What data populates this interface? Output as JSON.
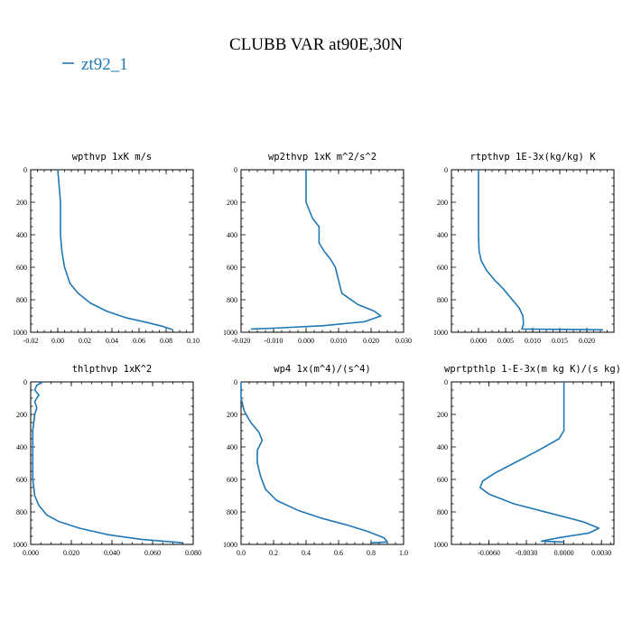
{
  "figure": {
    "title": "CLUBB VAR at90E,30N",
    "legend_label": "zt92_1",
    "line_color": "#1f77b4"
  },
  "chart_data": [
    {
      "type": "line",
      "title": "wpthvp  1xK m/s",
      "xlim": [
        -0.02,
        0.1
      ],
      "ylim": [
        1000,
        0
      ],
      "xticks": [
        "-0.02",
        "0.00",
        "0.02",
        "0.04",
        "0.06",
        "0.08",
        "0.10"
      ],
      "yticks": [
        "0",
        "200",
        "400",
        "600",
        "800",
        "1000"
      ],
      "grid": false,
      "series": [
        {
          "x": [
            0.0,
            0.001,
            0.002,
            0.002,
            0.002,
            0.003,
            0.005,
            0.009,
            0.015,
            0.024,
            0.036,
            0.05,
            0.066,
            0.078,
            0.085
          ],
          "y": [
            0,
            100,
            200,
            300,
            400,
            500,
            600,
            700,
            760,
            820,
            870,
            910,
            940,
            965,
            985
          ]
        }
      ]
    },
    {
      "type": "line",
      "title": "wp2thvp  1xK m^2/s^2",
      "xlim": [
        -0.02,
        0.03
      ],
      "ylim": [
        1000,
        0
      ],
      "xticks": [
        "-0.020",
        "-0.010",
        "0.000",
        "0.010",
        "0.020",
        "0.030"
      ],
      "yticks": [
        "0",
        "200",
        "400",
        "600",
        "800",
        "1000"
      ],
      "grid": false,
      "series": [
        {
          "x": [
            0.0,
            0.0,
            0.001,
            0.002,
            0.004,
            0.004,
            0.0055,
            0.0075,
            0.009,
            0.01,
            0.011,
            0.016,
            0.021,
            0.023,
            0.018,
            0.005,
            -0.01,
            -0.017
          ],
          "y": [
            0,
            200,
            250,
            300,
            350,
            450,
            500,
            550,
            600,
            680,
            760,
            830,
            870,
            900,
            935,
            960,
            975,
            980
          ]
        }
      ]
    },
    {
      "type": "line",
      "title": "rtpthvp  1E-3x(kg/kg) K",
      "xlim": [
        -0.005,
        0.025
      ],
      "ylim": [
        1000,
        0
      ],
      "xticks": [
        "0.000",
        "0.005",
        "0.010",
        "0.015",
        "0.020"
      ],
      "yticks": [
        "0",
        "200",
        "400",
        "600",
        "800",
        "1000"
      ],
      "grid": false,
      "series": [
        {
          "x": [
            0.0,
            0.0,
            0.0,
            0.0001,
            0.0005,
            0.0015,
            0.003,
            0.0045,
            0.006,
            0.0075,
            0.0082,
            0.0083,
            0.008,
            0.023
          ],
          "y": [
            0,
            200,
            400,
            500,
            560,
            620,
            680,
            730,
            790,
            850,
            900,
            950,
            980,
            985
          ]
        }
      ]
    },
    {
      "type": "line",
      "title": "thlpthvp  1xK^2",
      "xlim": [
        0.0,
        0.08
      ],
      "ylim": [
        1000,
        0
      ],
      "xticks": [
        "0.000",
        "0.020",
        "0.040",
        "0.060",
        "0.080"
      ],
      "yticks": [
        "0",
        "200",
        "400",
        "600",
        "800",
        "1000"
      ],
      "grid": false,
      "series": [
        {
          "x": [
            0.006,
            0.003,
            0.002,
            0.004,
            0.002,
            0.003,
            0.002,
            0.001,
            0.001,
            0.001,
            0.002,
            0.004,
            0.008,
            0.014,
            0.024,
            0.038,
            0.055,
            0.075
          ],
          "y": [
            0,
            20,
            50,
            80,
            120,
            160,
            200,
            300,
            500,
            600,
            700,
            760,
            820,
            860,
            900,
            940,
            970,
            990
          ]
        }
      ]
    },
    {
      "type": "line",
      "title": "wp4  1x(m^4)/(s^4)",
      "xlim": [
        0.0,
        1.0
      ],
      "ylim": [
        1000,
        0
      ],
      "xticks": [
        "0.0",
        "0.2",
        "0.4",
        "0.6",
        "0.8",
        "1.0"
      ],
      "yticks": [
        "0",
        "200",
        "400",
        "600",
        "800",
        "1000"
      ],
      "grid": false,
      "series": [
        {
          "x": [
            0.0,
            0.0,
            0.02,
            0.06,
            0.11,
            0.13,
            0.1,
            0.1,
            0.12,
            0.15,
            0.22,
            0.35,
            0.5,
            0.65,
            0.78,
            0.88,
            0.9,
            0.8
          ],
          "y": [
            0,
            100,
            180,
            250,
            310,
            360,
            420,
            500,
            580,
            660,
            730,
            790,
            840,
            880,
            920,
            960,
            985,
            990
          ]
        }
      ]
    },
    {
      "type": "line",
      "title": "wprtpthlp  1-E-3x(m kg K)/(s kg)",
      "xlim": [
        -0.009,
        0.004
      ],
      "ylim": [
        1000,
        0
      ],
      "xticks": [
        "-0.0060",
        "-0.0030",
        "0.0000",
        "0.0030"
      ],
      "yticks": [
        "0",
        "200",
        "400",
        "600",
        "800",
        "1000"
      ],
      "grid": false,
      "series": [
        {
          "x": [
            0.0,
            0.0,
            0.0,
            -0.0004,
            -0.002,
            -0.004,
            -0.0055,
            -0.0065,
            -0.0067,
            -0.006,
            -0.004,
            -0.001,
            0.0015,
            0.0028,
            0.002,
            -0.0005,
            -0.0018,
            0.0
          ],
          "y": [
            0,
            200,
            300,
            350,
            420,
            500,
            560,
            610,
            650,
            690,
            750,
            810,
            860,
            900,
            930,
            960,
            980,
            985
          ]
        }
      ]
    }
  ]
}
